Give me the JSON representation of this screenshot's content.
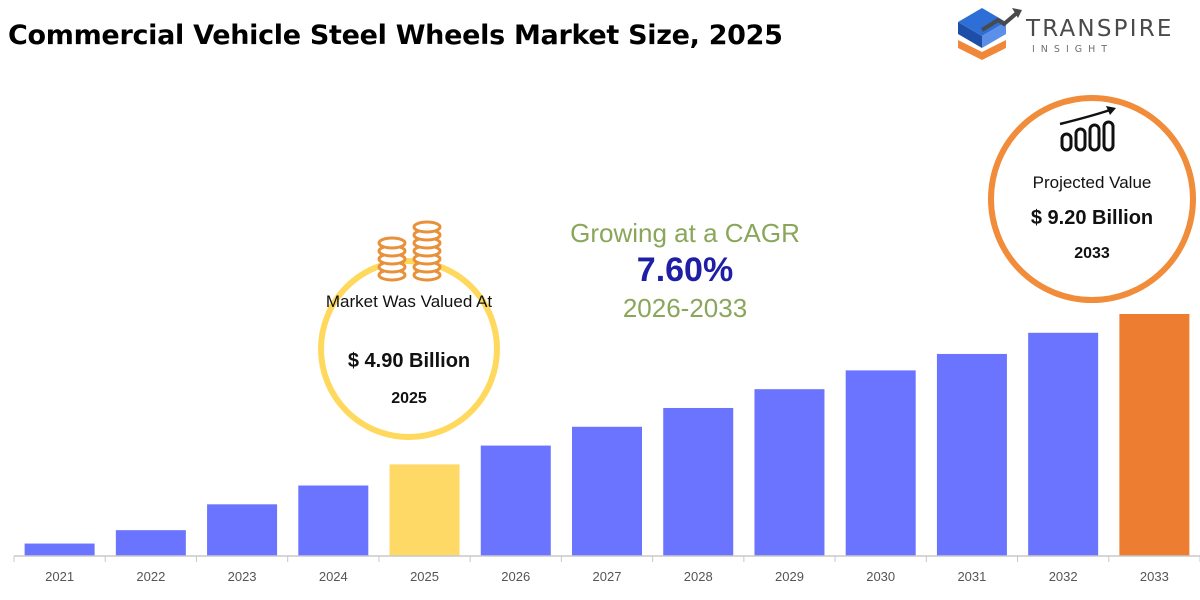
{
  "title": "Commercial Vehicle Steel Wheels Market Size, 2025",
  "brand": {
    "name": "TRANSPIRE",
    "sub": "INSIGHT",
    "logo_icon": "stepped-arrow-logo-icon"
  },
  "colors": {
    "bar": "#6b74ff",
    "bar_base_year": "#ffd966",
    "bar_projected": "#ed7d31",
    "base_ring": "#ffd95e",
    "projected_ring": "#f08c3a",
    "cagr_text": "#8aa65a",
    "cagr_value": "#1f1fa6"
  },
  "callout_base": {
    "label": "Market Was Valued At",
    "value": "$ 4.90 Billion",
    "year": "2025",
    "icon": "coin-stack-icon"
  },
  "callout_projected": {
    "label": "Projected Value",
    "value": "$ 9.20 Billion",
    "year": "2033",
    "icon": "growth-chart-icon"
  },
  "cagr": {
    "label": "Growing at a CAGR",
    "value": "7.60%",
    "period": "2026-2033"
  },
  "chart_data": {
    "type": "bar",
    "categories": [
      "2021",
      "2022",
      "2023",
      "2024",
      "2025",
      "2026",
      "2027",
      "2028",
      "2029",
      "2030",
      "2031",
      "2032",
      "2033"
    ],
    "values": [
      0.53,
      1.1,
      2.2,
      3.0,
      3.9,
      4.7,
      5.5,
      6.3,
      7.1,
      7.9,
      8.6,
      9.5,
      10.3
    ],
    "highlight": {
      "2025": "base-year",
      "2033": "projected"
    },
    "title": "Commercial Vehicle Steel Wheels Market Size, 2025",
    "xlabel": "",
    "ylabel": "",
    "ylim": [
      0,
      10.3
    ],
    "grid": false,
    "legend": "none"
  }
}
